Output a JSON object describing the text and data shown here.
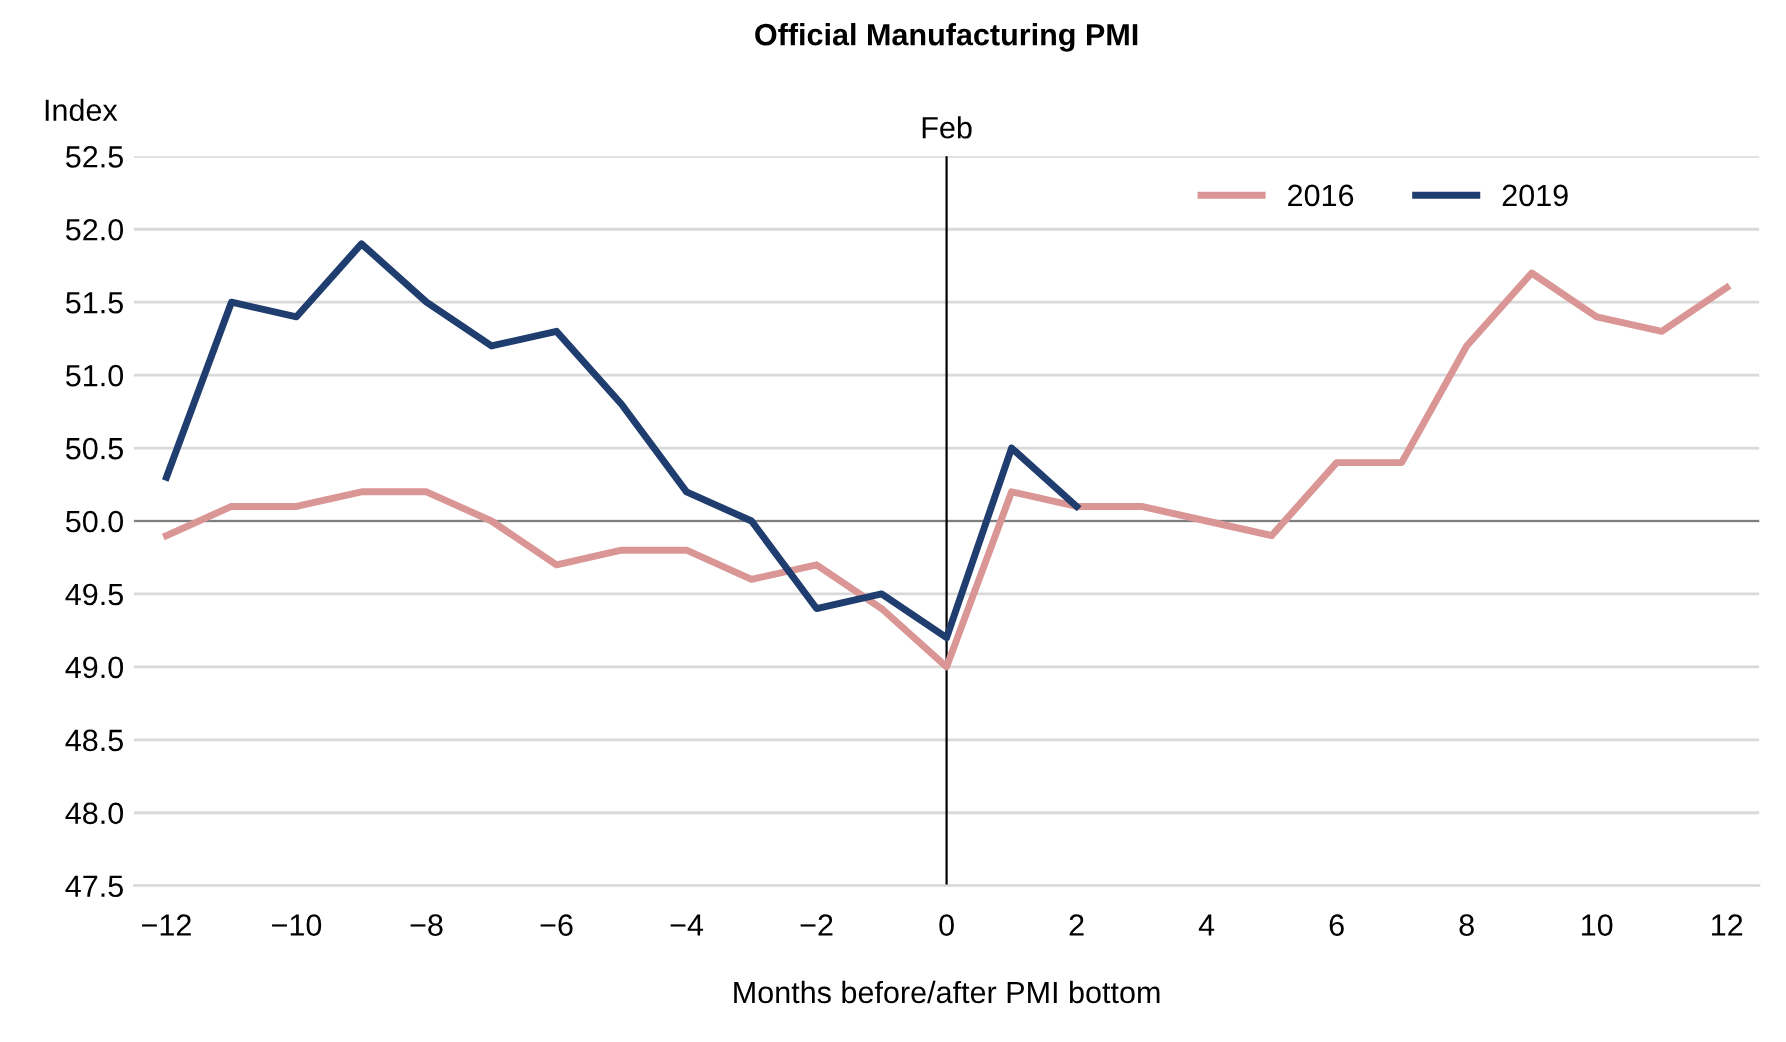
{
  "chart_data": {
    "type": "line",
    "title": "Official Manufacturing PMI",
    "ylabel": "Index",
    "xlabel": "Months before/after PMI bottom",
    "x": [
      -12,
      -11,
      -10,
      -9,
      -8,
      -7,
      -6,
      -5,
      -4,
      -3,
      -2,
      -1,
      0,
      1,
      2,
      3,
      4,
      5,
      6,
      7,
      8,
      9,
      10,
      11,
      12
    ],
    "series": [
      {
        "name": "2016",
        "color": "#d99694",
        "values": [
          49.9,
          50.1,
          50.1,
          50.2,
          50.2,
          50.0,
          49.7,
          49.8,
          49.8,
          49.6,
          49.7,
          49.4,
          49.0,
          50.2,
          50.1,
          50.1,
          50.0,
          49.9,
          50.4,
          50.4,
          51.2,
          51.7,
          51.4,
          51.3,
          51.6
        ]
      },
      {
        "name": "2019",
        "color": "#1f3d6e",
        "values": [
          50.3,
          51.5,
          51.4,
          51.9,
          51.5,
          51.2,
          51.3,
          50.8,
          50.2,
          50.0,
          49.4,
          49.5,
          49.2,
          50.5,
          50.1,
          null,
          null,
          null,
          null,
          null,
          null,
          null,
          null,
          null,
          null
        ]
      }
    ],
    "xlim": [
      -12.5,
      12.5
    ],
    "xticks": [
      {
        "value": -12,
        "label": "−12"
      },
      {
        "value": -10,
        "label": "−10"
      },
      {
        "value": -8,
        "label": "−8"
      },
      {
        "value": -6,
        "label": "−6"
      },
      {
        "value": -4,
        "label": "−4"
      },
      {
        "value": -2,
        "label": "−2"
      },
      0,
      2,
      4,
      6,
      8,
      10,
      12
    ],
    "ylim": [
      47.5,
      52.5
    ],
    "yticks": [
      {
        "value": 47.5,
        "label": "47.5"
      },
      {
        "value": 48,
        "label": "48.0"
      },
      {
        "value": 48.5,
        "label": "48.5"
      },
      {
        "value": 49,
        "label": "49.0"
      },
      {
        "value": 49.5,
        "label": "49.5"
      },
      {
        "value": 50,
        "label": "50.0"
      },
      {
        "value": 50.5,
        "label": "50.5"
      },
      {
        "value": 51,
        "label": "51.0"
      },
      {
        "value": 51.5,
        "label": "51.5"
      },
      {
        "value": 52,
        "label": "52.0"
      },
      {
        "value": 52.5,
        "label": "52.5"
      }
    ],
    "ref_lines": [
      {
        "axis": "y",
        "value": 50,
        "label": null,
        "color": "#7f7f7f"
      },
      {
        "axis": "x",
        "value": 0,
        "label": "Feb",
        "color": "#000000"
      }
    ],
    "grid": "y",
    "legend": "top right",
    "marker": "none",
    "line_style": "solid"
  }
}
